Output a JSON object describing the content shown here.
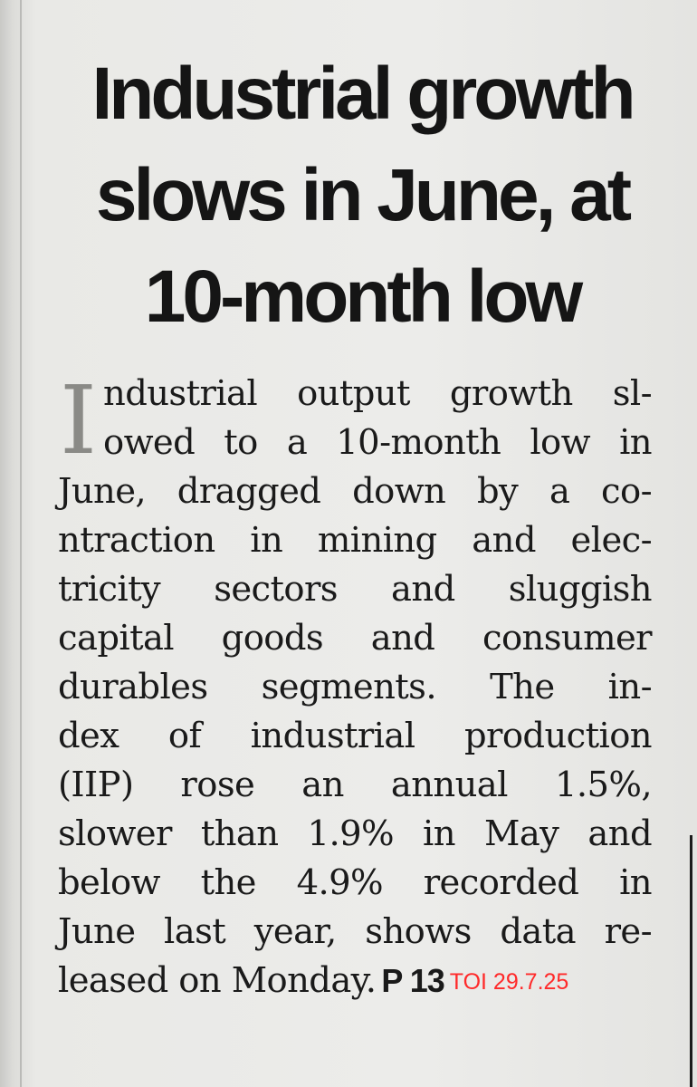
{
  "article": {
    "headline_lines": [
      "Industrial growth",
      "slows in June, at",
      "10-month low"
    ],
    "drop_cap": "I",
    "body_lines": [
      "ndustrial output growth sl-",
      "owed to a 10-month low in",
      "June, dragged down by a co-",
      "ntraction in mining and elec-",
      "tricity sectors and sluggish",
      "capital goods and consumer",
      "durables segments. The in-",
      "dex of industrial production",
      "(IIP) rose an annual 1.5%,",
      "slower than 1.9% in May and",
      "below the 4.9% recorded in",
      "June last year, shows data re-",
      "leased on Monday."
    ],
    "page_ref": "P 13",
    "source_stamp": "TOI 29.7.25"
  },
  "colors": {
    "ink": "#151515",
    "stamp_red": "#ff2a2a",
    "drop_cap_gray": "#8a8a86"
  }
}
